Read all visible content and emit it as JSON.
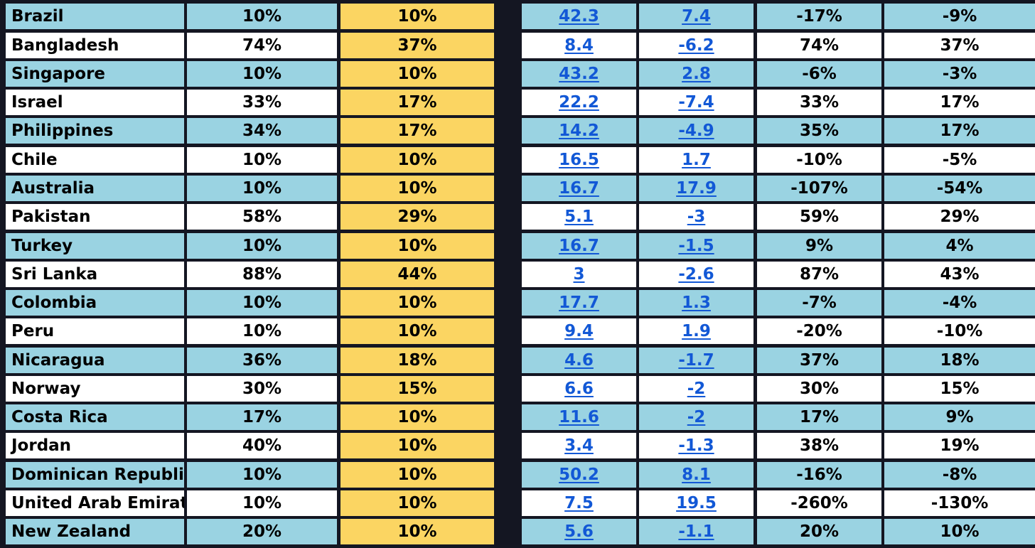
{
  "rows": [
    {
      "country": "Brazil",
      "c1": "10%",
      "c2": "10%",
      "c3": "42.3",
      "c4": "7.4",
      "c5": "-17%",
      "c6": "-9%"
    },
    {
      "country": "Bangladesh",
      "c1": "74%",
      "c2": "37%",
      "c3": "8.4",
      "c4": "-6.2",
      "c5": "74%",
      "c6": "37%"
    },
    {
      "country": "Singapore",
      "c1": "10%",
      "c2": "10%",
      "c3": "43.2",
      "c4": "2.8",
      "c5": "-6%",
      "c6": "-3%"
    },
    {
      "country": "Israel",
      "c1": "33%",
      "c2": "17%",
      "c3": "22.2",
      "c4": "-7.4",
      "c5": "33%",
      "c6": "17%"
    },
    {
      "country": "Philippines",
      "c1": "34%",
      "c2": "17%",
      "c3": "14.2",
      "c4": "-4.9",
      "c5": "35%",
      "c6": "17%"
    },
    {
      "country": "Chile",
      "c1": "10%",
      "c2": "10%",
      "c3": "16.5",
      "c4": "1.7",
      "c5": "-10%",
      "c6": "-5%"
    },
    {
      "country": "Australia",
      "c1": "10%",
      "c2": "10%",
      "c3": "16.7",
      "c4": "17.9",
      "c5": "-107%",
      "c6": "-54%"
    },
    {
      "country": "Pakistan",
      "c1": "58%",
      "c2": "29%",
      "c3": "5.1",
      "c4": "-3",
      "c5": "59%",
      "c6": "29%"
    },
    {
      "country": "Turkey",
      "c1": "10%",
      "c2": "10%",
      "c3": "16.7",
      "c4": "-1.5",
      "c5": "9%",
      "c6": "4%"
    },
    {
      "country": "Sri Lanka",
      "c1": "88%",
      "c2": "44%",
      "c3": "3",
      "c4": "-2.6",
      "c5": "87%",
      "c6": "43%"
    },
    {
      "country": "Colombia",
      "c1": "10%",
      "c2": "10%",
      "c3": "17.7",
      "c4": "1.3",
      "c5": "-7%",
      "c6": "-4%"
    },
    {
      "country": "Peru",
      "c1": "10%",
      "c2": "10%",
      "c3": "9.4",
      "c4": "1.9",
      "c5": "-20%",
      "c6": "-10%"
    },
    {
      "country": "Nicaragua",
      "c1": "36%",
      "c2": "18%",
      "c3": "4.6",
      "c4": "-1.7",
      "c5": "37%",
      "c6": "18%"
    },
    {
      "country": "Norway",
      "c1": "30%",
      "c2": "15%",
      "c3": "6.6",
      "c4": "-2",
      "c5": "30%",
      "c6": "15%"
    },
    {
      "country": "Costa Rica",
      "c1": "17%",
      "c2": "10%",
      "c3": "11.6",
      "c4": "-2",
      "c5": "17%",
      "c6": "9%"
    },
    {
      "country": "Jordan",
      "c1": "40%",
      "c2": "10%",
      "c3": "3.4",
      "c4": "-1.3",
      "c5": "38%",
      "c6": "19%"
    },
    {
      "country": "Dominican Republic",
      "c1": "10%",
      "c2": "10%",
      "c3": "50.2",
      "c4": "8.1",
      "c5": "-16%",
      "c6": "-8%"
    },
    {
      "country": "United Arab Emirates",
      "c1": "10%",
      "c2": "10%",
      "c3": "7.5",
      "c4": "19.5",
      "c5": "-260%",
      "c6": "-130%"
    },
    {
      "country": "New Zealand",
      "c1": "20%",
      "c2": "10%",
      "c3": "5.6",
      "c4": "-1.1",
      "c5": "20%",
      "c6": "10%"
    }
  ],
  "colors": {
    "background": "#141622",
    "row_blue": "#9ad3e2",
    "row_white": "#ffffff",
    "highlight_yellow": "#fbd562",
    "link_blue": "#1258d6"
  }
}
